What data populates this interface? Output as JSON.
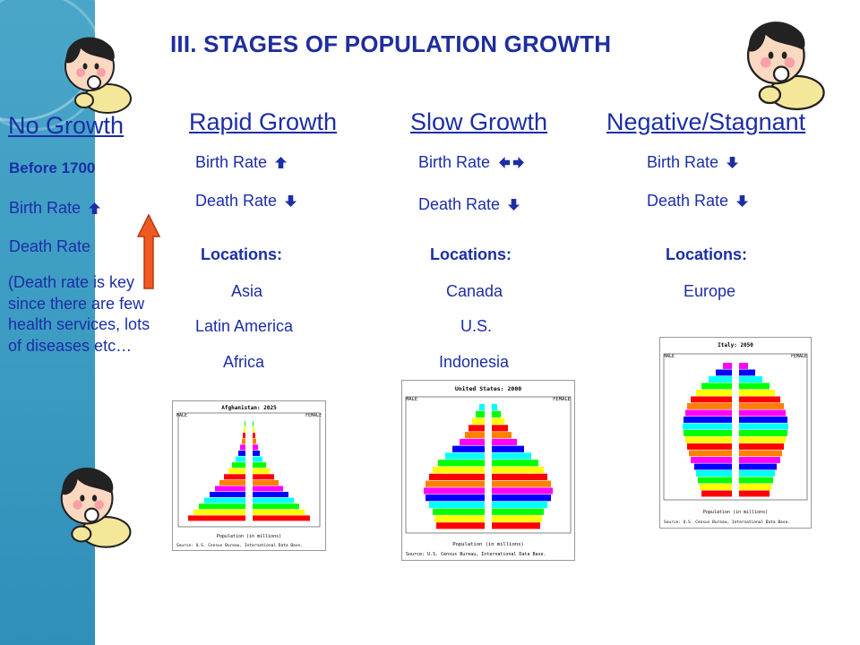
{
  "title": "III.  STAGES OF POPULATION GROWTH",
  "columns": {
    "no_growth": {
      "heading": "No Growth",
      "period": "Before 1700",
      "birth_rate": "Birth Rate",
      "birth_dir": "up",
      "death_rate": "Death Rate",
      "death_dir": "up",
      "note": "(Death rate is key since there are few health services, lots of diseases etc…"
    },
    "rapid": {
      "heading": "Rapid Growth",
      "birth_rate": "Birth Rate",
      "birth_dir": "up",
      "death_rate": "Death Rate",
      "death_dir": "down",
      "locations_label": "Locations:",
      "locations": [
        "Asia",
        "Latin America",
        "Africa"
      ],
      "chart_title": "Afghanistan: 2025"
    },
    "slow": {
      "heading": "Slow Growth",
      "birth_rate": "Birth Rate",
      "birth_dir": "left-right",
      "death_rate": "Death Rate",
      "death_dir": "down",
      "locations_label": "Locations:",
      "locations": [
        "Canada",
        "U.S.",
        "Indonesia"
      ],
      "chart_title": "United States: 2000"
    },
    "negative": {
      "heading": "Negative/Stagnant",
      "birth_rate": "Birth Rate",
      "birth_dir": "down",
      "death_rate": "Death Rate",
      "death_dir": "down",
      "locations_label": "Locations:",
      "locations": [
        "Europe"
      ],
      "chart_title": "Italy: 2050"
    }
  },
  "pyramid_labels": {
    "male": "MALE",
    "female": "FEMALE",
    "axis": "Population (in millions)",
    "source": "Source: U.S. Census Bureau, International Data Base."
  },
  "colors": {
    "title": "#1f2e9c",
    "text": "#1c2ea6",
    "sidebar": "#3b9bc2",
    "arrow_big": "#f05a22",
    "band_colors": [
      "#ff0000",
      "#ffff00",
      "#00ff00",
      "#00ffff",
      "#0000ff",
      "#ff00ff",
      "#ff8000"
    ]
  },
  "icons": [
    "baby-icon",
    "up-arrow-icon",
    "down-arrow-icon",
    "left-right-arrow-icon"
  ]
}
